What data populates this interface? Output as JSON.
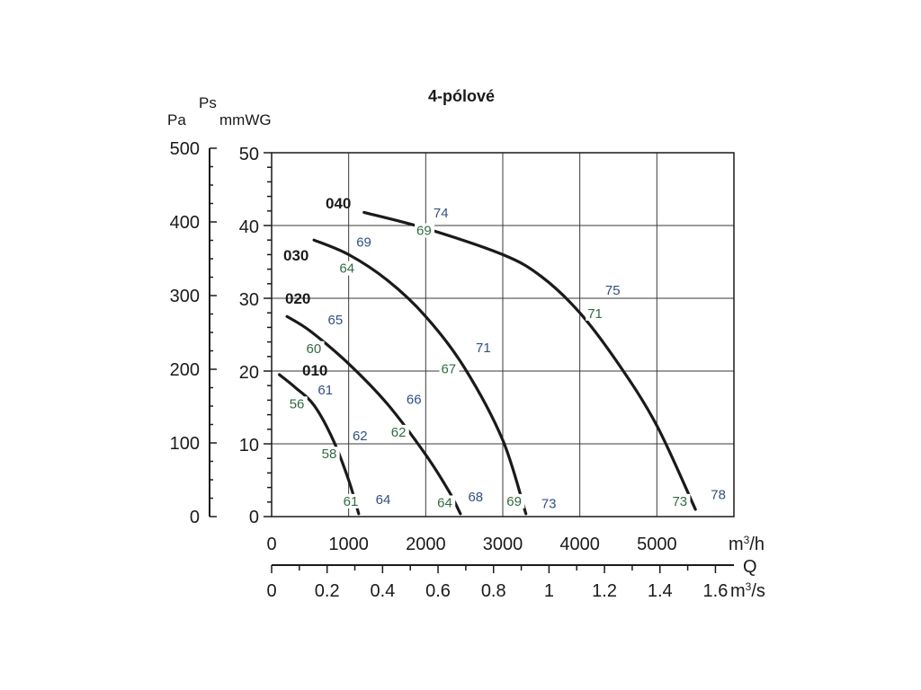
{
  "chart_data": {
    "type": "line",
    "title": "4-pólové",
    "pressure_units": {
      "pa": "Pa",
      "ps": "Ps",
      "mmwg": "mmWG"
    },
    "x_unit_top": "m3/h",
    "q_label": "Q",
    "x_unit_bottom": "m3/s",
    "pa_ticks": [
      "500",
      "400",
      "300",
      "200",
      "100",
      "0"
    ],
    "mmwg_ticks": [
      "50",
      "40",
      "30",
      "20",
      "10",
      "0"
    ],
    "xlim": [
      0,
      6000
    ],
    "ylim": [
      0,
      50
    ],
    "grid": true,
    "x_ticks_m3h": [
      "0",
      "1000",
      "2000",
      "3000",
      "4000",
      "5000"
    ],
    "x_ticks_m3s": [
      "0",
      "0.2",
      "0.4",
      "0.6",
      "0.8",
      "1",
      "1.2",
      "1.4",
      "1.6"
    ],
    "series": [
      {
        "name": "010",
        "x": [
          100,
          300,
          550,
          800,
          1000,
          1130
        ],
        "y": [
          19.5,
          17.8,
          15.3,
          10.5,
          5.0,
          0.4
        ]
      },
      {
        "name": "020",
        "x": [
          200,
          500,
          1000,
          1500,
          2000,
          2300,
          2450
        ],
        "y": [
          27.5,
          25.5,
          21.0,
          15.5,
          8.5,
          3.5,
          0.4
        ]
      },
      {
        "name": "030",
        "x": [
          550,
          1000,
          1500,
          2000,
          2500,
          3000,
          3300
        ],
        "y": [
          38.0,
          36.0,
          32.5,
          27.5,
          20.5,
          10.5,
          0.4
        ]
      },
      {
        "name": "040",
        "x": [
          1200,
          2000,
          3000,
          3500,
          4000,
          4500,
          5000,
          5500
        ],
        "y": [
          41.8,
          39.6,
          36.0,
          33.0,
          28.0,
          21.0,
          12.5,
          1.0
        ]
      }
    ],
    "annotations_blue": [
      {
        "text": "74",
        "x": 2100,
        "y": 41.1
      },
      {
        "text": "69",
        "x": 1100,
        "y": 37.1
      },
      {
        "text": "75",
        "x": 4330,
        "y": 30.5
      },
      {
        "text": "65",
        "x": 730,
        "y": 26.4
      },
      {
        "text": "71",
        "x": 2650,
        "y": 22.6
      },
      {
        "text": "61",
        "x": 600,
        "y": 16.8
      },
      {
        "text": "66",
        "x": 1750,
        "y": 15.5
      },
      {
        "text": "62",
        "x": 1050,
        "y": 10.5
      },
      {
        "text": "64",
        "x": 1350,
        "y": 1.7
      },
      {
        "text": "68",
        "x": 2550,
        "y": 2.1
      },
      {
        "text": "73",
        "x": 3500,
        "y": 1.2
      },
      {
        "text": "78",
        "x": 5700,
        "y": 2.4
      }
    ],
    "annotations_green": [
      {
        "text": "69",
        "x": 1880,
        "y": 38.7
      },
      {
        "text": "64",
        "x": 880,
        "y": 33.5
      },
      {
        "text": "71",
        "x": 4100,
        "y": 27.3
      },
      {
        "text": "60",
        "x": 450,
        "y": 22.5
      },
      {
        "text": "67",
        "x": 2200,
        "y": 19.7
      },
      {
        "text": "56",
        "x": 230,
        "y": 14.9
      },
      {
        "text": "62",
        "x": 1550,
        "y": 11.0
      },
      {
        "text": "58",
        "x": 650,
        "y": 8.0
      },
      {
        "text": "61",
        "x": 930,
        "y": 1.5
      },
      {
        "text": "64",
        "x": 2150,
        "y": 1.3
      },
      {
        "text": "69",
        "x": 3050,
        "y": 1.5
      },
      {
        "text": "73",
        "x": 5200,
        "y": 1.5
      }
    ],
    "colors": {
      "curve": "#1a1a1a",
      "grid": "#3a3a3a",
      "blue": "#2e4f8f",
      "green": "#2e6e3e"
    }
  }
}
